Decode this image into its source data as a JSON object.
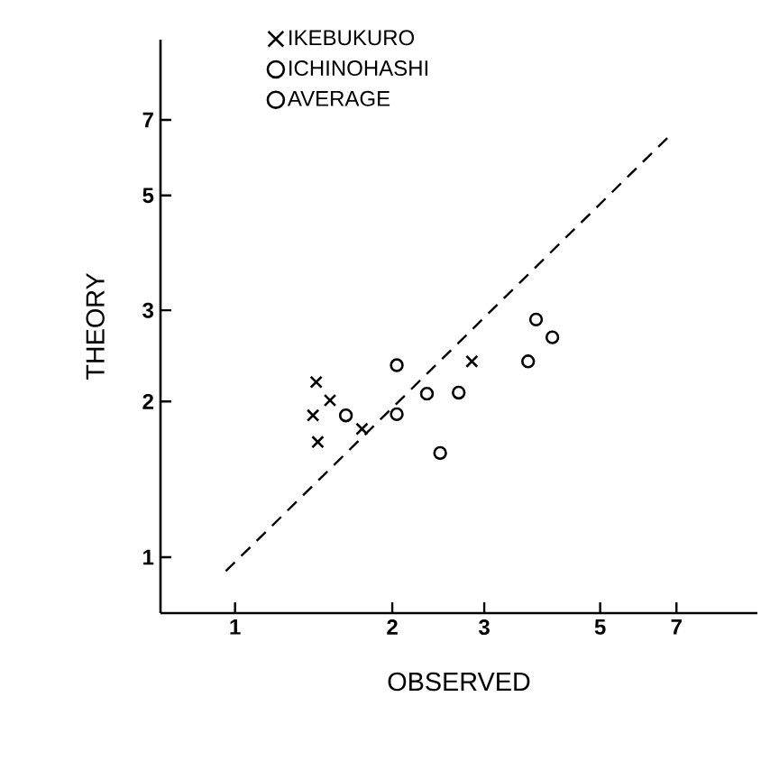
{
  "chart_data": {
    "type": "scatter",
    "xlabel": "OBSERVED",
    "ylabel": "THEORY",
    "log": "xy",
    "xlim": [
      0.72,
      10
    ],
    "ylim": [
      0.78,
      10
    ],
    "xticks": [
      1,
      2,
      3,
      5,
      7
    ],
    "yticks": [
      1,
      2,
      3,
      5,
      7
    ],
    "legend": "top left",
    "series": [
      {
        "name": "IKEBUKURO",
        "color": "#000000",
        "marker": "cross",
        "x": [
          1.43,
          1.52,
          1.41,
          1.44,
          1.75,
          2.84
        ],
        "values": [
          2.18,
          2.01,
          1.88,
          1.67,
          1.77,
          2.39
        ]
      },
      {
        "name": "ICHINOHASHI",
        "color": "#000000",
        "marker": "circle",
        "x": [
          1.63,
          2.04,
          2.04,
          2.47,
          2.68,
          3.64,
          3.77,
          4.05
        ],
        "values": [
          1.88,
          2.35,
          1.89,
          1.59,
          2.08,
          2.39,
          2.88,
          2.66
        ]
      },
      {
        "name": "AVERAGE",
        "color": "#000000",
        "marker": "circle",
        "x": [
          2.33
        ],
        "values": [
          2.07
        ]
      },
      {
        "type": "line",
        "color": "#000000",
        "marker": "none",
        "line_style": "dashed",
        "x": [
          0.96,
          6.82
        ],
        "values": [
          0.94,
          6.55
        ]
      }
    ]
  }
}
